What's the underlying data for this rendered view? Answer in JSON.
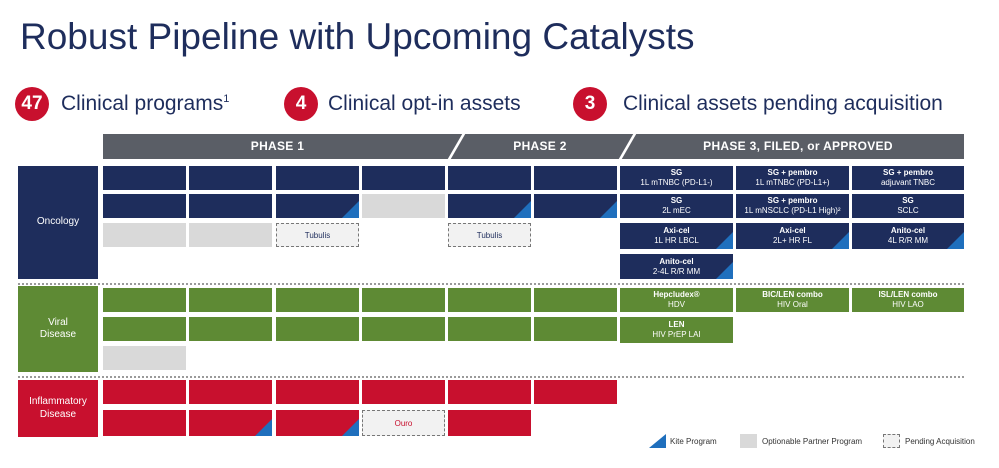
{
  "title": "Robust Pipeline with Upcoming Catalysts",
  "stats": [
    {
      "number": "47",
      "label": "Clinical programs",
      "sup": "1"
    },
    {
      "number": "4",
      "label": "Clinical opt-in assets",
      "sup": ""
    },
    {
      "number": "3",
      "label": "Clinical assets pending acquisition",
      "sup": ""
    }
  ],
  "phases": [
    "PHASE 1",
    "PHASE 2",
    "PHASE 3, FILED, or APPROVED"
  ],
  "categories": {
    "oncology": {
      "label": "Oncology",
      "color": "#1e2d5c"
    },
    "viral": {
      "label": "Viral Disease",
      "color": "#5e8a34"
    },
    "inflammatory": {
      "label": "Inflammatory Disease",
      "color": "#c8102e"
    }
  },
  "colors": {
    "kite": "#1f6fbd",
    "partner": "#d9d9d9",
    "phase_bar": "#5a5e66"
  },
  "labeled_cells": {
    "tubulis_p1": "Tubulis",
    "tubulis_p2": "Tubulis",
    "ouro": "Ouro",
    "sg1": {
      "name": "SG",
      "sub": "1L mTNBC (PD-L1-)"
    },
    "sgp1": {
      "name": "SG + pembro",
      "sub": "1L mTNBC (PD-L1+)"
    },
    "sgp2": {
      "name": "SG + pembro",
      "sub": "adjuvant TNBC"
    },
    "sg2": {
      "name": "SG",
      "sub": "2L mEC"
    },
    "sgp3": {
      "name": "SG + pembro",
      "sub": "1L mNSCLC (PD-L1 High)²"
    },
    "sg3": {
      "name": "SG",
      "sub": "SCLC"
    },
    "axi1": {
      "name": "Axi-cel",
      "sub": "1L HR LBCL"
    },
    "axi2": {
      "name": "Axi-cel",
      "sub": "2L+ HR FL"
    },
    "anito1": {
      "name": "Anito-cel",
      "sub": "4L R/R MM"
    },
    "anito2": {
      "name": "Anito-cel",
      "sub": "2-4L R/R MM"
    },
    "hep": {
      "name": "Hepcludex®",
      "sub": "HDV"
    },
    "bic": {
      "name": "BIC/LEN combo",
      "sub": "HIV Oral"
    },
    "isl": {
      "name": "ISL/LEN combo",
      "sub": "HIV LAO"
    },
    "len": {
      "name": "LEN",
      "sub": "HIV PrEP LAI"
    }
  },
  "legend": {
    "kite": "Kite Program",
    "partner": "Optionable Partner Program",
    "pending": "Pending Acquisition"
  }
}
